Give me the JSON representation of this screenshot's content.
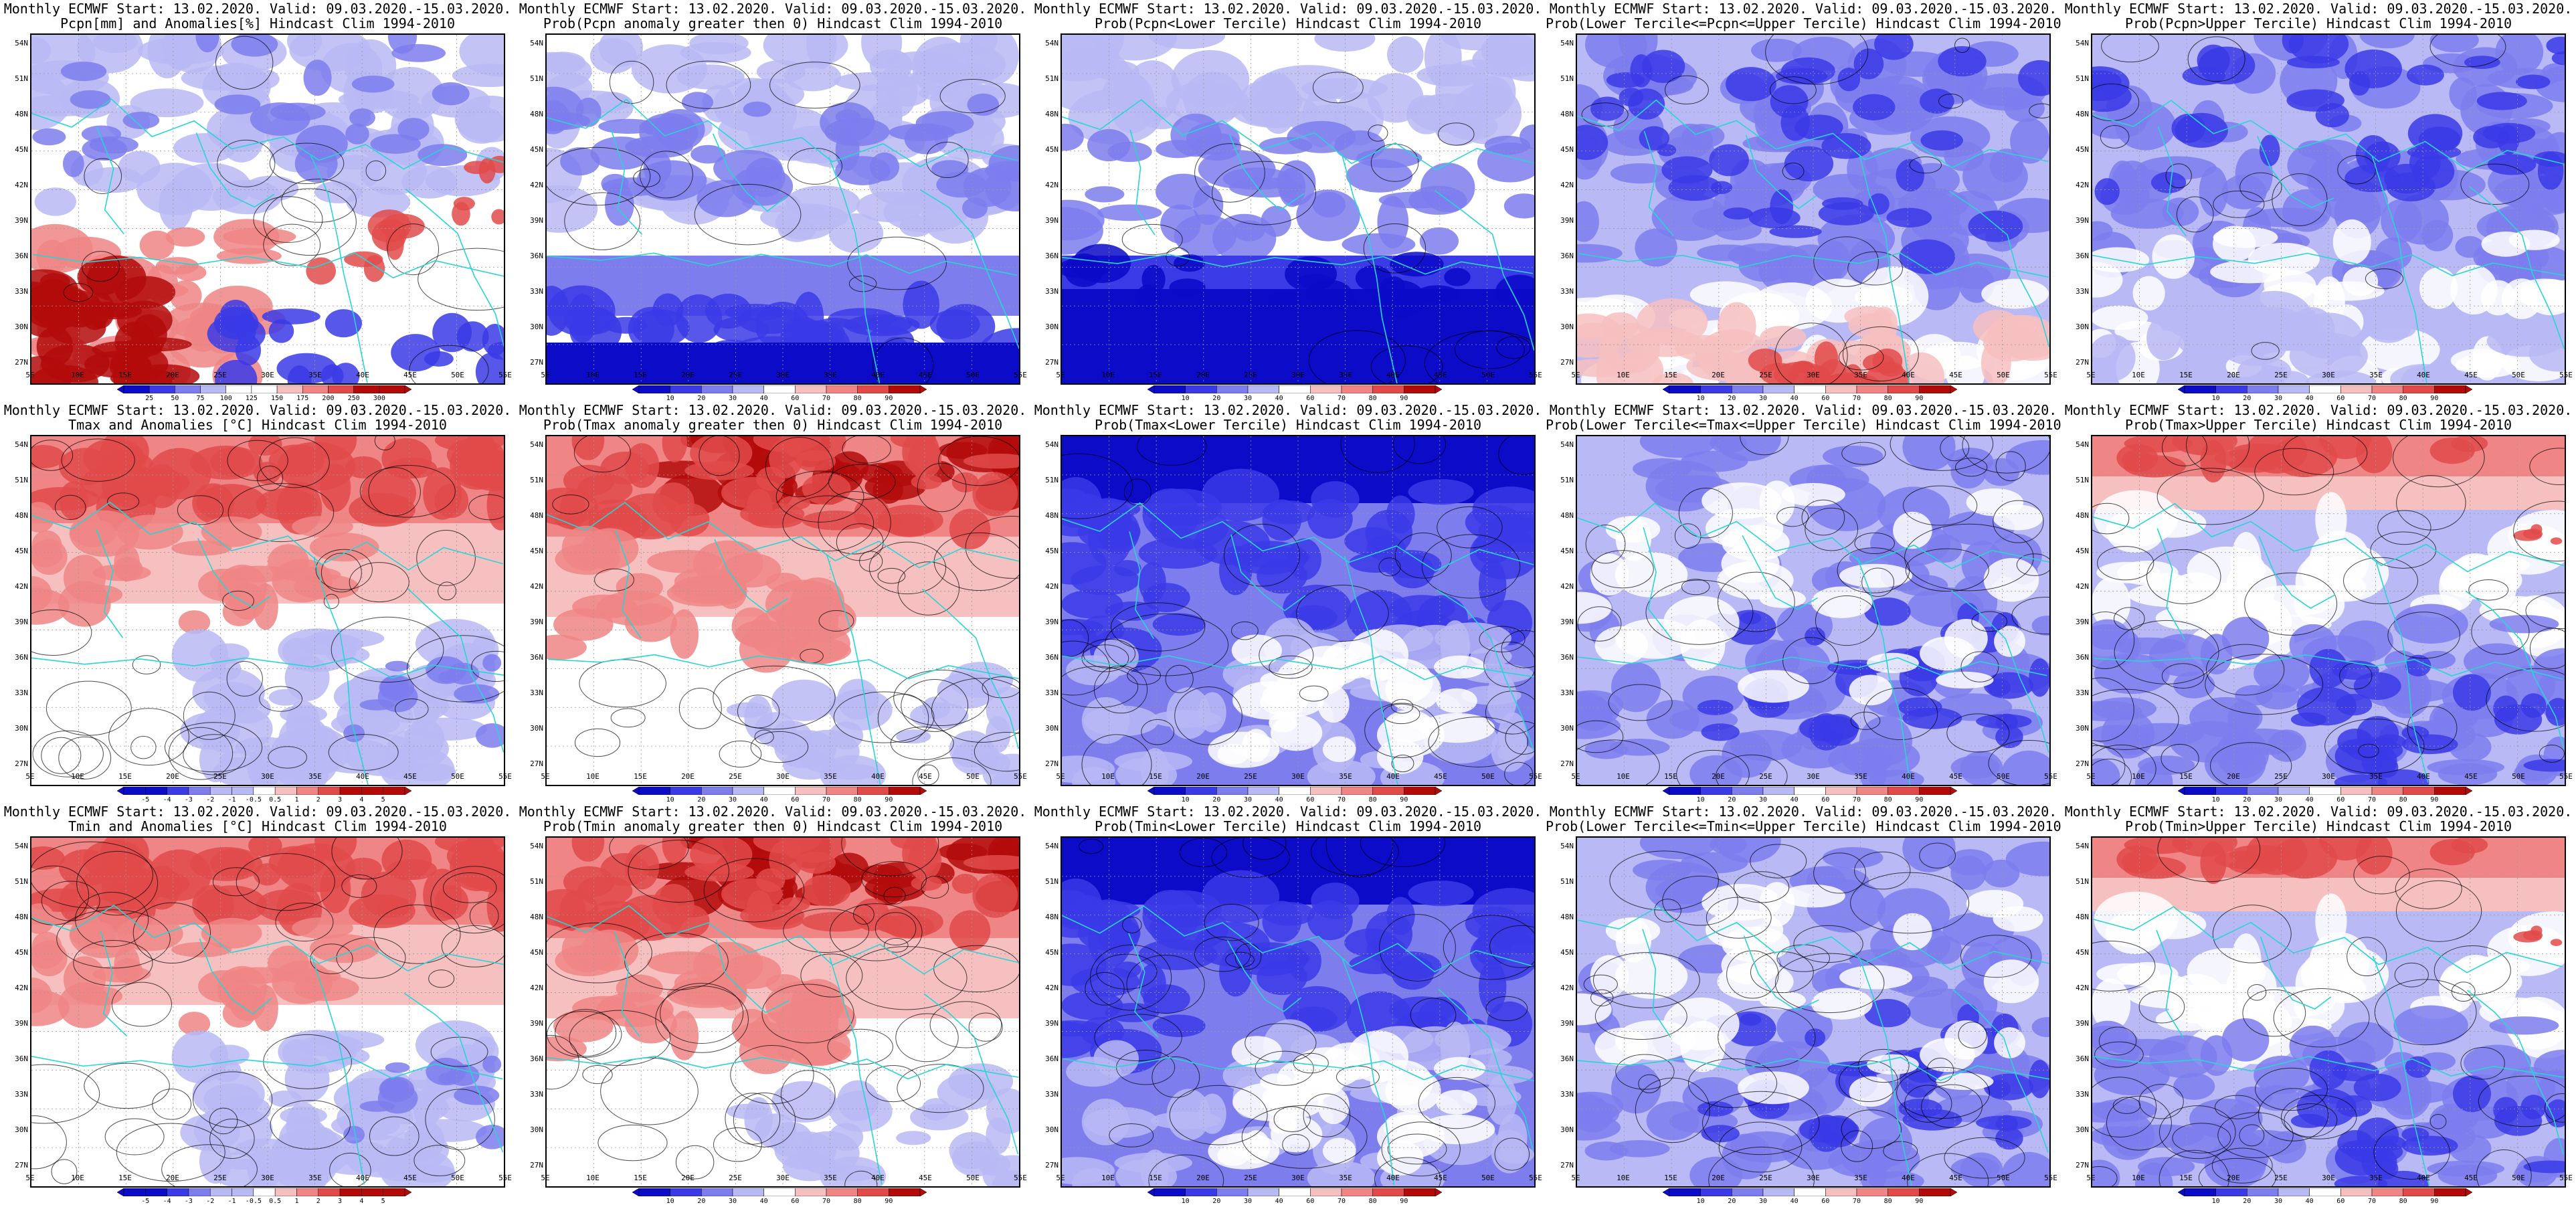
{
  "colors": {
    "neg3": "#0b0bc8",
    "neg2": "#3a3ae6",
    "neg1": "#7d7dee",
    "neg0": "#b9b9f5",
    "neut": "#ffffff",
    "pos0": "#f7c0c0",
    "pos1": "#f08585",
    "pos2": "#e24a4a",
    "pos3": "#b30a0a",
    "coast": "#29d4d4",
    "contour": "#000000"
  },
  "lat_labels": [
    "54N",
    "51N",
    "48N",
    "45N",
    "42N",
    "39N",
    "36N",
    "33N",
    "30N",
    "27N"
  ],
  "lon_labels": [
    "5E",
    "10E",
    "15E",
    "20E",
    "25E",
    "30E",
    "35E",
    "40E",
    "45E",
    "50E",
    "55E"
  ],
  "colorbars": {
    "precip_anom": [
      "25",
      "50",
      "75",
      "100",
      "125",
      "150",
      "175",
      "200",
      "250",
      "300"
    ],
    "prob": [
      "10",
      "20",
      "30",
      "40",
      "60",
      "70",
      "80",
      "90"
    ],
    "temp_anom": [
      "-5",
      "-4",
      "-3",
      "-2",
      "-1",
      "-0.5",
      "0.5",
      "1",
      "2",
      "3",
      "4",
      "5"
    ]
  },
  "panels": [
    {
      "line1": "Monthly ECMWF Start: 13.02.2020. Valid: 09.03.2020.-15.03.2020.",
      "line2": "Pcpn[mm] and Anomalies[%] Hindcast Clim 1994-2010",
      "cbar": "precip_anom",
      "scheme": "pa",
      "var": "pcpn"
    },
    {
      "line1": "Monthly ECMWF Start: 13.02.2020. Valid: 09.03.2020.-15.03.2020.",
      "line2": "Prob(Pcpn anomaly greater then 0) Hindcast Clim 1994-2010",
      "cbar": "prob",
      "scheme": "pp",
      "var": "pcpn"
    },
    {
      "line1": "Monthly ECMWF Start: 13.02.2020. Valid: 09.03.2020.-15.03.2020.",
      "line2": "Prob(Pcpn<Lower Tercile) Hindcast Clim 1994-2010",
      "cbar": "prob",
      "scheme": "plo",
      "var": "pcpn"
    },
    {
      "line1": "Monthly ECMWF Start: 13.02.2020. Valid: 09.03.2020.-15.03.2020.",
      "line2": "Prob(Lower Tercile<=Pcpn<=Upper Tercile) Hindcast Clim 1994-2010",
      "cbar": "prob",
      "scheme": "pmid",
      "var": "pcpn"
    },
    {
      "line1": "Monthly ECMWF Start: 13.02.2020. Valid: 09.03.2020.-15.03.2020.",
      "line2": "Prob(Pcpn>Upper Tercile) Hindcast Clim 1994-2010",
      "cbar": "prob",
      "scheme": "pup",
      "var": "pcpn"
    },
    {
      "line1": "Monthly ECMWF Start: 13.02.2020. Valid: 09.03.2020.-15.03.2020.",
      "line2": "Tmax and Anomalies [°C] Hindcast Clim 1994-2010",
      "cbar": "temp_anom",
      "scheme": "ta",
      "var": "tmax"
    },
    {
      "line1": "Monthly ECMWF Start: 13.02.2020. Valid: 09.03.2020.-15.03.2020.",
      "line2": "Prob(Tmax anomaly greater then 0) Hindcast Clim 1994-2010",
      "cbar": "prob",
      "scheme": "tp",
      "var": "tmax"
    },
    {
      "line1": "Monthly ECMWF Start: 13.02.2020. Valid: 09.03.2020.-15.03.2020.",
      "line2": "Prob(Tmax<Lower Tercile) Hindcast Clim 1994-2010",
      "cbar": "prob",
      "scheme": "tlo",
      "var": "tmax"
    },
    {
      "line1": "Monthly ECMWF Start: 13.02.2020. Valid: 09.03.2020.-15.03.2020.",
      "line2": "Prob(Lower Tercile<=Tmax<=Upper Tercile) Hindcast Clim 1994-2010",
      "cbar": "prob",
      "scheme": "tmid",
      "var": "tmax"
    },
    {
      "line1": "Monthly ECMWF Start: 13.02.2020. Valid: 09.03.2020.-15.03.2020.",
      "line2": "Prob(Tmax>Upper Tercile) Hindcast Clim 1994-2010",
      "cbar": "prob",
      "scheme": "tup",
      "var": "tmax"
    },
    {
      "line1": "Monthly ECMWF Start: 13.02.2020. Valid: 09.03.2020.-15.03.2020.",
      "line2": "Tmin and Anomalies [°C] Hindcast Clim 1994-2010",
      "cbar": "temp_anom",
      "scheme": "ta",
      "var": "tmin"
    },
    {
      "line1": "Monthly ECMWF Start: 13.02.2020. Valid: 09.03.2020.-15.03.2020.",
      "line2": "Prob(Tmin anomaly greater then 0) Hindcast Clim 1994-2010",
      "cbar": "prob",
      "scheme": "tp",
      "var": "tmin"
    },
    {
      "line1": "Monthly ECMWF Start: 13.02.2020. Valid: 09.03.2020.-15.03.2020.",
      "line2": "Prob(Tmin<Lower Tercile) Hindcast Clim 1994-2010",
      "cbar": "prob",
      "scheme": "tlo",
      "var": "tmin"
    },
    {
      "line1": "Monthly ECMWF Start: 13.02.2020. Valid: 09.03.2020.-15.03.2020.",
      "line2": "Prob(Lower Tercile<=Tmin<=Upper Tercile) Hindcast Clim 1994-2010",
      "cbar": "prob",
      "scheme": "tmid",
      "var": "tmin"
    },
    {
      "line1": "Monthly ECMWF Start: 13.02.2020. Valid: 09.03.2020.-15.03.2020.",
      "line2": "Prob(Tmin>Upper Tercile) Hindcast Clim 1994-2010",
      "cbar": "prob",
      "scheme": "tup",
      "var": "tmin"
    }
  ]
}
